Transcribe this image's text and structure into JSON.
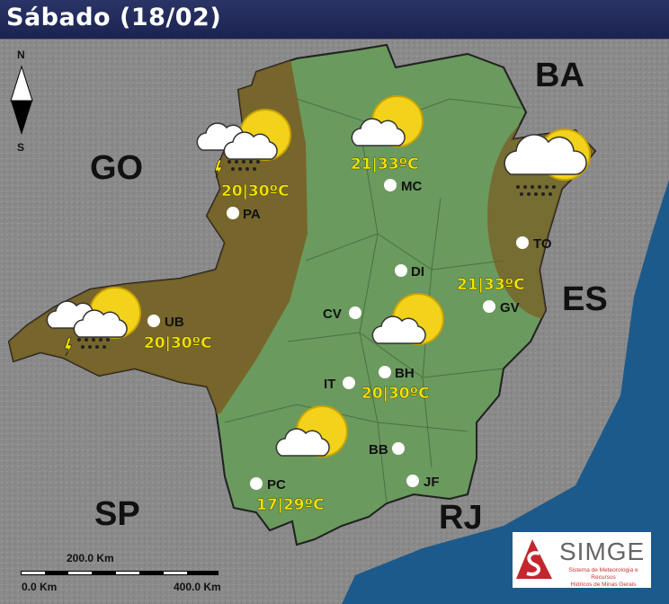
{
  "title": "Sábado (18/02)",
  "colors": {
    "state": "#6a9a5e",
    "storm_zone": "#7a5a20",
    "ocean": "#1d5a8c",
    "temperature": "#f5e400"
  },
  "states": [
    "BA",
    "GO",
    "ES",
    "SP",
    "RJ"
  ],
  "compass": {
    "north": "N",
    "south": "S"
  },
  "cities": [
    {
      "code": "PA"
    },
    {
      "code": "MC"
    },
    {
      "code": "TO"
    },
    {
      "code": "DI"
    },
    {
      "code": "CV"
    },
    {
      "code": "GV"
    },
    {
      "code": "UB"
    },
    {
      "code": "IT"
    },
    {
      "code": "BH"
    },
    {
      "code": "BB"
    },
    {
      "code": "JF"
    },
    {
      "code": "PC"
    }
  ],
  "forecasts": [
    {
      "region": "PA",
      "icon": "sun-cloud-rain-lightning-icon",
      "temp": "20|30ºC"
    },
    {
      "region": "MC",
      "icon": "sun-cloud-icon",
      "temp": "21|33ºC"
    },
    {
      "region": "TO",
      "icon": "sun-cloud-rain-icon",
      "temp": ""
    },
    {
      "region": "GV",
      "icon": "",
      "temp": "21|33ºC"
    },
    {
      "region": "UB",
      "icon": "sun-cloud-rain-lightning-icon",
      "temp": "20|30ºC"
    },
    {
      "region": "BH",
      "icon": "sun-cloud-icon",
      "temp": "20|30ºC"
    },
    {
      "region": "PC",
      "icon": "sun-cloud-icon",
      "temp": "17|29ºC"
    }
  ],
  "scale": {
    "mid": "200.0 Km",
    "start": "0.0 Km",
    "end": "400.0 Km"
  },
  "logo": {
    "name": "SIMGE",
    "subtitle_1": "Sistema de Meteorologia e Recursos",
    "subtitle_2": "Hídricos de Minas Gerais"
  }
}
